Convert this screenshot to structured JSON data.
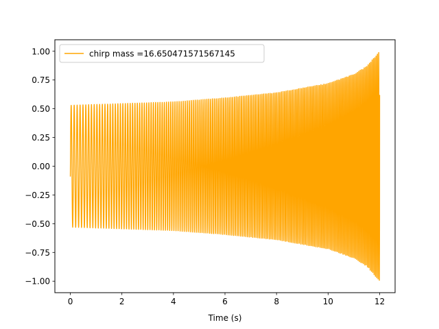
{
  "chart_data": {
    "type": "line",
    "title": "",
    "xlabel": "Time (s)",
    "ylabel": "",
    "xlim": [
      -0.6,
      12.6
    ],
    "ylim": [
      -1.1,
      1.1
    ],
    "xticks": [
      0,
      2,
      4,
      6,
      8,
      10,
      12
    ],
    "xtick_labels": [
      "0",
      "2",
      "4",
      "6",
      "8",
      "10",
      "12"
    ],
    "yticks": [
      -1.0,
      -0.75,
      -0.5,
      -0.25,
      0.0,
      0.25,
      0.5,
      0.75,
      1.0
    ],
    "ytick_labels": [
      "−1.00",
      "−0.75",
      "−0.50",
      "−0.25",
      "0.00",
      "0.25",
      "0.50",
      "0.75",
      "1.00"
    ],
    "grid": false,
    "legend_position": "upper-left",
    "series": [
      {
        "name": "chirp mass =16.650471571567145",
        "color": "#FFA500",
        "description_values": {
          "x_start": 0.0,
          "x_end": 12.0,
          "envelope": [
            {
              "x": 0.0,
              "amplitude": 0.53
            },
            {
              "x": 2.0,
              "amplitude": 0.545
            },
            {
              "x": 4.0,
              "amplitude": 0.56
            },
            {
              "x": 6.0,
              "amplitude": 0.595
            },
            {
              "x": 8.0,
              "amplitude": 0.64
            },
            {
              "x": 10.0,
              "amplitude": 0.72
            },
            {
              "x": 11.0,
              "amplitude": 0.8
            },
            {
              "x": 11.5,
              "amplitude": 0.87
            },
            {
              "x": 12.0,
              "amplitude": 1.0
            }
          ],
          "start_value": -0.09,
          "end_value": 0.62
        }
      }
    ]
  }
}
